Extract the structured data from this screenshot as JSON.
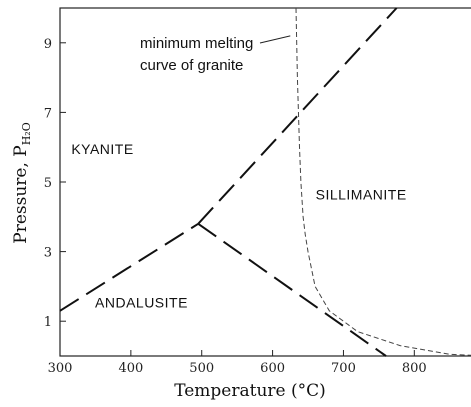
{
  "chart_data": {
    "type": "line",
    "title": "",
    "xlabel": "Temperature (°C)",
    "ylabel_main": "Pressure, P",
    "ylabel_sub": "H₂O",
    "xlim": [
      300,
      880
    ],
    "ylim": [
      0,
      10
    ],
    "x_ticks": [
      300,
      400,
      500,
      600,
      700,
      800
    ],
    "y_ticks": [
      1,
      3,
      5,
      7,
      9
    ],
    "grid": false,
    "series": [
      {
        "style": "long-dash",
        "x": [
          300,
          495
        ],
        "y": [
          1.3,
          3.8
        ]
      },
      {
        "style": "long-dash",
        "x": [
          495,
          775
        ],
        "y": [
          3.8,
          10
        ]
      },
      {
        "style": "long-dash",
        "x": [
          495,
          760
        ],
        "y": [
          3.8,
          0
        ]
      },
      {
        "style": "short-dash",
        "x": [
          633,
          635,
          638,
          640,
          643,
          646,
          650,
          660,
          680,
          720,
          780,
          850,
          880
        ],
        "y": [
          10,
          8,
          6,
          5,
          4,
          3.5,
          3,
          2,
          1.3,
          0.7,
          0.3,
          0.05,
          0.02
        ]
      }
    ],
    "field_labels": [
      {
        "text": "KYANITE",
        "x": 360,
        "y": 5.8
      },
      {
        "text": "SILLIMANITE",
        "x": 725,
        "y": 4.5
      },
      {
        "text": "ANDALUSITE",
        "x": 415,
        "y": 1.4
      }
    ],
    "annotation": {
      "lines": [
        "minimum melting",
        "curve of granite"
      ],
      "pointer_x": 625,
      "pointer_y": 9.2
    }
  }
}
